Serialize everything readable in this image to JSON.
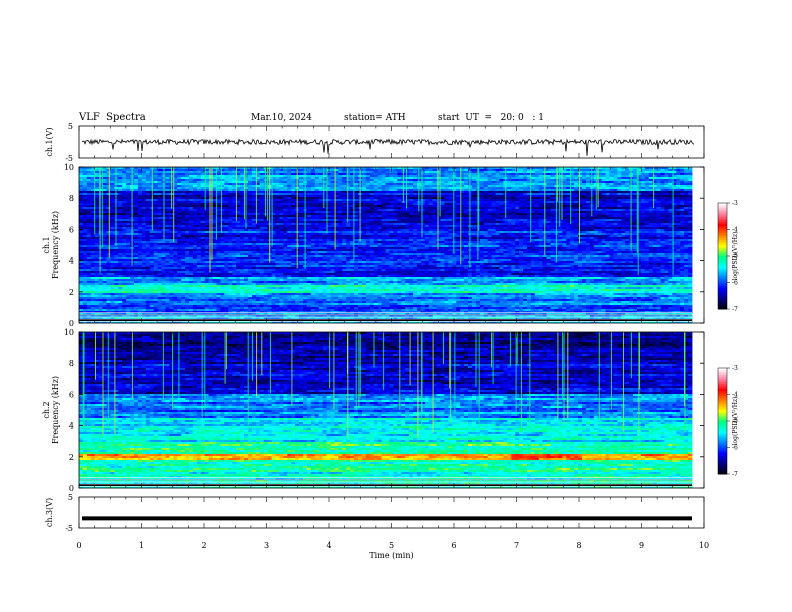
{
  "header": {
    "title": "VLF  Spectra",
    "date": "Mar.10, 2024",
    "station": "station= ATH",
    "start": "start  UT  =   20: 0   : 1"
  },
  "chart_data": [
    {
      "type": "line",
      "ylabel": "ch.1(V)",
      "ylim": [
        -5,
        5
      ],
      "yticks": [
        "5",
        "-5"
      ],
      "xlim": [
        0,
        10
      ],
      "trace": "noise around ~0 V with occasional negative spikes"
    },
    {
      "type": "heatmap",
      "ylabel_channel": "ch.1",
      "ylabel": "Frequency  (kHz)",
      "ylim": [
        0,
        10
      ],
      "yticks": [
        "0",
        "2",
        "4",
        "6",
        "8",
        "10"
      ],
      "xlim": [
        0,
        10
      ],
      "colorbar": {
        "label": "log(PSD)(V²/Hz)",
        "range": [
          -7,
          -3
        ],
        "ticks": [
          "-3",
          "-4",
          "-5",
          "-6",
          "-7"
        ]
      }
    },
    {
      "type": "heatmap",
      "ylabel_channel": "ch.2",
      "ylabel": "Frequency  (kHz)",
      "ylim": [
        0,
        10
      ],
      "yticks": [
        "0",
        "2",
        "4",
        "6",
        "8",
        "10"
      ],
      "xlim": [
        0,
        10
      ],
      "colorbar": {
        "label": "log(PSD)(V²/Hz)",
        "range": [
          -7,
          -3
        ],
        "ticks": [
          "-3",
          "-4",
          "-5",
          "-6",
          "-7"
        ]
      }
    },
    {
      "type": "line",
      "ylabel": "ch.3(V)",
      "ylim": [
        -5,
        5
      ],
      "yticks": [
        "5",
        "-5"
      ],
      "xlim": [
        0,
        10
      ],
      "xticks": [
        "0",
        "1",
        "2",
        "3",
        "4",
        "5",
        "6",
        "7",
        "8",
        "9",
        "10"
      ],
      "xlabel": "Time  (min)",
      "trace": "flat thick line near -2 V"
    }
  ],
  "colors": {
    "colormap": [
      "#000000",
      "#00007a",
      "#0000ff",
      "#0080ff",
      "#00ffff",
      "#00ff80",
      "#ffff00",
      "#ff8000",
      "#ff0000",
      "#ff80a0",
      "#ffffff"
    ]
  }
}
